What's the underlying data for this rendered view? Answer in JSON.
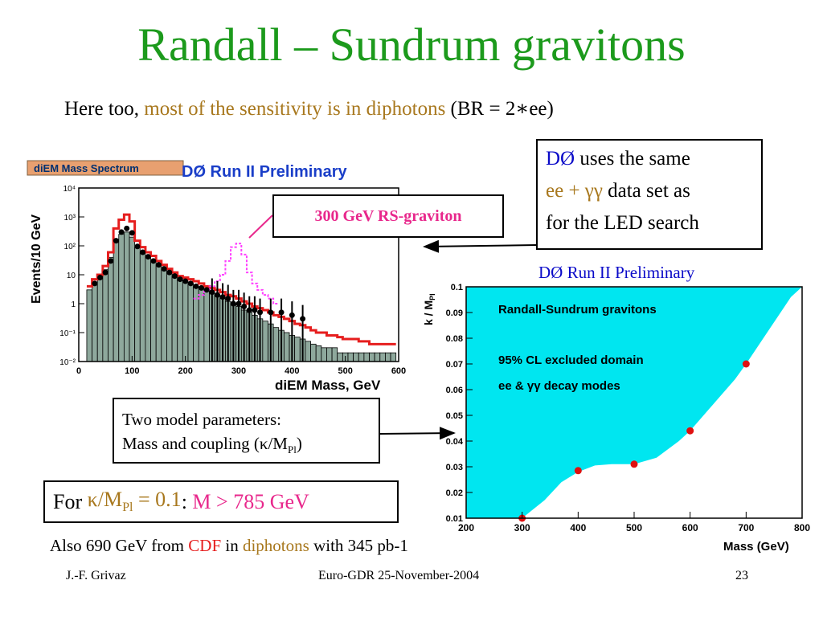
{
  "slide": {
    "title": "Randall – Sundrum gravitons",
    "subtitle": {
      "lead": "Here too,",
      "highlight": "most of the sensitivity is in diphotons",
      "tail": "(BR = 2∗ee)"
    },
    "dzero_box": {
      "d0": "DØ",
      "line1_rest": "uses the same",
      "ee_gg": "ee + γγ",
      "line2_rest": "data set as",
      "line3": "for the LED search"
    },
    "rs_label": "300 GeV RS-graviton",
    "params_box": {
      "line1": "Two model parameters:",
      "line2_pre": "Mass and coupling (κ/M",
      "line2_sub": "Pl",
      "line2_post": ")"
    },
    "result_box": {
      "for": "For",
      "kappa": "κ/M",
      "kappa_sub": "Pl",
      "eq": "= 0.1",
      "colon": ":",
      "limit": "M > 785 GeV"
    },
    "also": {
      "pre": "Also 690 GeV from",
      "cdf": "CDF",
      "in": "in",
      "diphotons": "diphotons",
      "post": "with 345 pb-1"
    },
    "footer": {
      "author": "J.-F. Grivaz",
      "event": "Euro-GDR 25-November-2004",
      "page": "23"
    },
    "right_caption": "DØ Run II Preliminary"
  },
  "colors": {
    "title_green": "#1c9a1c",
    "olive": "#a8781e",
    "red": "#e61e1e",
    "magenta": "#e8288c",
    "blue": "#0a0ac8",
    "cyan": "#00e6f0",
    "hist_fill": "#8ea89c"
  },
  "chart_data": [
    {
      "type": "bar",
      "tag": "diEM Mass Spectrum",
      "title": "DØ Run II Preliminary",
      "xlabel": "diEM Mass, GeV",
      "ylabel": "Events/10 GeV",
      "log_y": true,
      "xlim": [
        0,
        600
      ],
      "ylim": [
        0.01,
        10000
      ],
      "x_ticks": [
        "0",
        "100",
        "200",
        "300",
        "400",
        "500",
        "600"
      ],
      "y_ticks": [
        "10⁻²",
        "10⁻¹",
        "1",
        "10",
        "10²",
        "10³",
        "10⁴"
      ],
      "x": [
        20,
        30,
        40,
        50,
        60,
        70,
        80,
        90,
        100,
        110,
        120,
        130,
        140,
        150,
        160,
        170,
        180,
        190,
        200,
        210,
        220,
        230,
        240,
        250,
        260,
        270,
        280,
        290,
        300,
        310,
        320,
        330,
        340,
        350,
        360,
        370,
        380,
        390,
        400,
        410,
        420,
        430,
        440,
        450,
        460,
        470,
        480,
        490,
        500,
        510,
        520,
        530,
        540,
        550,
        560,
        570,
        580,
        590
      ],
      "series": [
        {
          "name": "background",
          "values": [
            3,
            5,
            8,
            15,
            40,
            150,
            250,
            300,
            200,
            90,
            60,
            40,
            30,
            22,
            15,
            12,
            9,
            7,
            6,
            5,
            4,
            3.5,
            3,
            2.5,
            2,
            1.5,
            1.2,
            1,
            0.8,
            0.6,
            0.5,
            0.4,
            0.3,
            0.25,
            0.2,
            0.15,
            0.12,
            0.1,
            0.08,
            0.07,
            0.06,
            0.05,
            0.04,
            0.035,
            0.03,
            0.03,
            0.03,
            0.02,
            0.02,
            0.02,
            0.02,
            0.02,
            0.02,
            0.02,
            0.02,
            0.02,
            0.02,
            0.02
          ]
        },
        {
          "name": "background + signal",
          "values": [
            4,
            7,
            10,
            20,
            60,
            400,
            800,
            1200,
            700,
            150,
            90,
            60,
            45,
            30,
            22,
            16,
            12,
            9,
            8,
            7,
            6,
            5,
            4,
            3.5,
            3,
            2.5,
            2,
            1.8,
            1.5,
            1.2,
            1,
            0.8,
            0.7,
            0.6,
            0.5,
            0.4,
            0.35,
            0.3,
            0.25,
            0.2,
            0.18,
            0.15,
            0.12,
            0.1,
            0.1,
            0.08,
            0.08,
            0.07,
            0.06,
            0.06,
            0.06,
            0.05,
            0.05,
            0.04,
            0.04,
            0.04,
            0.04,
            0.04
          ]
        },
        {
          "name": "300 GeV RS-graviton",
          "x": [
            220,
            230,
            240,
            250,
            260,
            270,
            280,
            290,
            300,
            310,
            320,
            330,
            340,
            350,
            360,
            370
          ],
          "values": [
            1.5,
            2,
            3,
            4,
            6,
            10,
            30,
            90,
            120,
            50,
            12,
            5,
            3,
            2,
            1.5,
            1
          ]
        },
        {
          "name": "data",
          "x": [
            30,
            40,
            50,
            60,
            70,
            80,
            90,
            100,
            110,
            120,
            130,
            140,
            150,
            160,
            170,
            180,
            190,
            200,
            210,
            220,
            230,
            240,
            250,
            260,
            270,
            280,
            290,
            300,
            310,
            320,
            330,
            340,
            360,
            380,
            400,
            420
          ],
          "values": [
            5,
            8,
            12,
            30,
            150,
            300,
            400,
            280,
            95,
            60,
            42,
            30,
            22,
            16,
            12,
            9,
            7,
            6,
            5,
            4,
            3.5,
            3,
            2.5,
            2,
            1.7,
            1.5,
            1,
            1,
            0.8,
            0.6,
            0.6,
            0.5,
            0.5,
            0.5,
            0.4,
            0.3
          ]
        }
      ]
    },
    {
      "type": "area",
      "title": "Randall-Sundrum gravitons",
      "annotations": [
        "95% CL excluded domain",
        "ee & γγ decay modes"
      ],
      "xlabel": "Mass (GeV)",
      "ylabel": "k / M",
      "ylabel_sub": "Pl",
      "xlim": [
        200,
        800
      ],
      "ylim": [
        0.01,
        0.1
      ],
      "x_ticks": [
        "200",
        "300",
        "400",
        "500",
        "600",
        "700",
        "800"
      ],
      "y_ticks": [
        "0.01",
        "0.02",
        "0.03",
        "0.04",
        "0.05",
        "0.06",
        "0.07",
        "0.08",
        "0.09",
        "0.1"
      ],
      "boundary": {
        "x": [
          300,
          340,
          370,
          400,
          430,
          460,
          500,
          540,
          580,
          600,
          640,
          680,
          700,
          740,
          780,
          800
        ],
        "y": [
          0.01,
          0.017,
          0.024,
          0.028,
          0.0305,
          0.031,
          0.031,
          0.0335,
          0.04,
          0.044,
          0.054,
          0.064,
          0.07,
          0.083,
          0.096,
          0.104
        ]
      },
      "points": {
        "x": [
          300,
          400,
          500,
          600,
          700
        ],
        "y": [
          0.01,
          0.0285,
          0.031,
          0.044,
          0.07
        ]
      }
    }
  ]
}
